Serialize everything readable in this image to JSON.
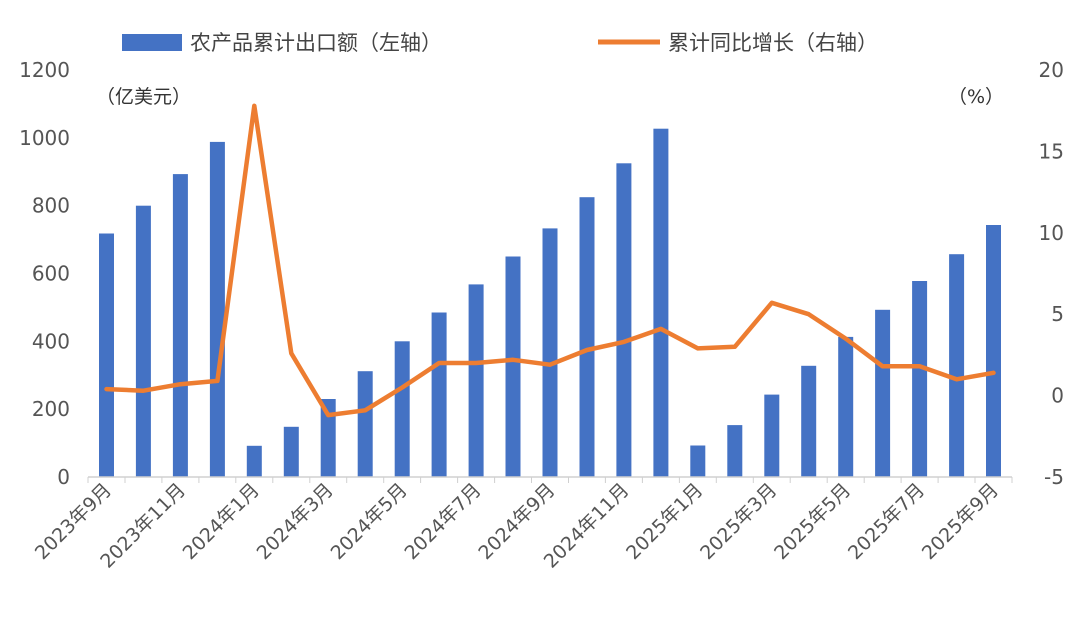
{
  "chart_data": {
    "type": "bar+line",
    "legend": {
      "bar_label": "农产品累计出口额（左轴）",
      "line_label": "累计同比增长（右轴）"
    },
    "left_unit": "（亿美元）",
    "right_unit": "（%）",
    "left_ticks": [
      "0",
      "200",
      "400",
      "600",
      "800",
      "1000",
      "1200"
    ],
    "right_ticks": [
      "-5",
      "0",
      "5",
      "10",
      "15",
      "20"
    ],
    "ylim_left": [
      0,
      1200
    ],
    "ylim_right": [
      -5,
      20
    ],
    "categories": [
      "2023-09",
      "2023-10",
      "2023-11",
      "2023-12",
      "2024-01",
      "2024-02",
      "2024-03",
      "2024-04",
      "2024-05",
      "2024-06",
      "2024-07",
      "2024-08",
      "2024-09",
      "2024-10",
      "2024-11",
      "2024-12",
      "2025-01",
      "2025-02",
      "2025-03",
      "2025-04",
      "2025-05",
      "2025-06",
      "2025-07",
      "2025-08",
      "2025-09"
    ],
    "x_tick_labels": [
      "2023年9月",
      "2023年11月",
      "2024年1月",
      "2024年3月",
      "2024年5月",
      "2024年7月",
      "2024年9月",
      "2024年11月",
      "2025年1月",
      "2025年3月",
      "2025年5月",
      "2025年7月",
      "2025年9月"
    ],
    "series": [
      {
        "name": "农产品累计出口额（左轴）",
        "type": "bar",
        "axis": "left",
        "color": "#4472C4",
        "values": [
          718,
          800,
          893,
          988,
          92,
          148,
          230,
          312,
          400,
          485,
          568,
          650,
          733,
          825,
          925,
          1027,
          93,
          153,
          243,
          328,
          413,
          493,
          578,
          657,
          743
        ]
      },
      {
        "name": "累计同比增长（右轴）",
        "type": "line",
        "axis": "right",
        "color": "#ED7D31",
        "values": [
          0.4,
          0.3,
          0.7,
          0.9,
          17.8,
          2.6,
          -1.2,
          -0.9,
          0.5,
          2.0,
          2.0,
          2.2,
          1.9,
          2.8,
          3.3,
          4.1,
          2.9,
          3.0,
          5.7,
          5.0,
          3.5,
          1.8,
          1.8,
          1.0,
          1.4
        ]
      }
    ],
    "grid": false,
    "legend_position": "top"
  }
}
